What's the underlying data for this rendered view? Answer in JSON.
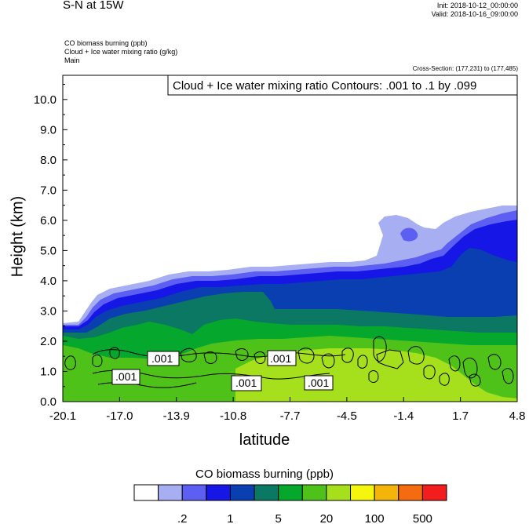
{
  "header": {
    "title": "S-N at 15W",
    "init": "Init: 2018-10-12_00:00:00",
    "valid": "Valid: 2018-10-16_09:00:00",
    "var1": "CO biomass burning   (ppb)",
    "var2": "Cloud + Ice water mixing ratio   (g/kg)",
    "var3": "Main",
    "cross_section": "Cross-Section: (177,231) to (177,485)"
  },
  "chart_data": {
    "type": "heatmap",
    "title": "S-N at 15W",
    "xlabel": "latitude",
    "ylabel": "Height (km)",
    "xlim": [
      -20.1,
      4.8
    ],
    "ylim": [
      0.0,
      10.8
    ],
    "x_ticks": [
      "-20.1",
      "-17.0",
      "-13.9",
      "-10.8",
      "-7.7",
      "-4.5",
      "-1.4",
      "1.7",
      "4.8"
    ],
    "y_ticks": [
      "0.0",
      "1.0",
      "2.0",
      "3.0",
      "4.0",
      "5.0",
      "6.0",
      "7.0",
      "8.0",
      "9.0",
      "10.0"
    ],
    "contour_title": "Cloud + Ice water mixing ratio Contours: .001 to .1 by .099",
    "contour_labels": [
      ".001",
      ".001",
      ".001",
      ".001",
      ".001"
    ],
    "colorbar": {
      "title": "CO biomass burning  (ppb)",
      "colors": [
        "#ffffff",
        "#a7aef2",
        "#5d5ef2",
        "#1616e6",
        "#0a3fb1",
        "#0b7863",
        "#05a82c",
        "#4fc21a",
        "#a6e01c",
        "#f5f50e",
        "#f5b409",
        "#f46c0f",
        "#f41d1d"
      ],
      "labels": [
        ".2",
        "1",
        "5",
        "20",
        "100",
        "500"
      ]
    },
    "layers": [
      {
        "name": "white",
        "color": "#ffffff"
      },
      {
        "name": "pale-blue",
        "color": "#a7aef2"
      },
      {
        "name": "medium-blue",
        "color": "#5d5ef2"
      },
      {
        "name": "bright-blue",
        "color": "#1616e6"
      },
      {
        "name": "dark-blue",
        "color": "#0a3fb1"
      },
      {
        "name": "teal",
        "color": "#0b7863"
      },
      {
        "name": "green",
        "color": "#05a82c"
      },
      {
        "name": "light-green",
        "color": "#4fc21a"
      },
      {
        "name": "yellow-green",
        "color": "#a6e01c"
      }
    ]
  }
}
